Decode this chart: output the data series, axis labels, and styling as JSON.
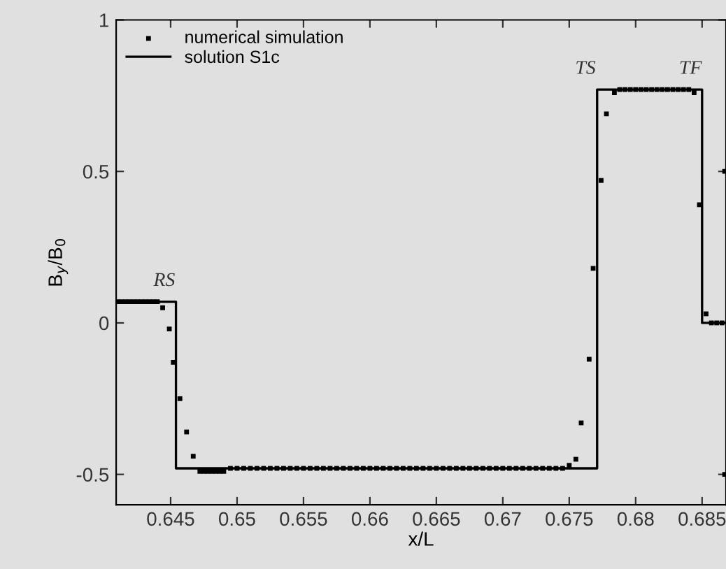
{
  "chart_data": {
    "type": "scatter",
    "xlabel": "x/L",
    "ylabel": "B$_{y}$/B$_{0}$",
    "xlim": [
      0.6409,
      0.6868
    ],
    "ylim": [
      -0.6,
      1
    ],
    "xticks": [
      0.645,
      0.65,
      0.655,
      0.66,
      0.665,
      0.67,
      0.675,
      0.68,
      0.685
    ],
    "yticks": [
      -0.5,
      0,
      0.5,
      1
    ],
    "grid": false,
    "legend": "top left",
    "series": [
      {
        "name": "numerical simulation",
        "marker": "square",
        "color": "#000000",
        "x": [
          0.641,
          0.6413,
          0.6416,
          0.6419,
          0.6422,
          0.6425,
          0.6428,
          0.6431,
          0.6434,
          0.6437,
          0.644,
          0.6444,
          0.6449,
          0.6452,
          0.6457,
          0.6462,
          0.6467,
          0.6472,
          0.6475,
          0.6478,
          0.6481,
          0.6484,
          0.6487,
          0.649,
          0.6495,
          0.65,
          0.6505,
          0.651,
          0.6515,
          0.652,
          0.6525,
          0.653,
          0.6535,
          0.654,
          0.6545,
          0.655,
          0.6555,
          0.656,
          0.6565,
          0.657,
          0.6575,
          0.658,
          0.6585,
          0.659,
          0.6595,
          0.66,
          0.6605,
          0.661,
          0.6615,
          0.662,
          0.6625,
          0.663,
          0.6635,
          0.664,
          0.6645,
          0.665,
          0.6655,
          0.666,
          0.6665,
          0.667,
          0.6675,
          0.668,
          0.6685,
          0.669,
          0.6695,
          0.67,
          0.6705,
          0.671,
          0.6715,
          0.672,
          0.6725,
          0.673,
          0.6735,
          0.674,
          0.6745,
          0.675,
          0.6755,
          0.6759,
          0.6765,
          0.6768,
          0.6774,
          0.6778,
          0.6784,
          0.6788,
          0.6792,
          0.6796,
          0.68,
          0.6804,
          0.6808,
          0.6812,
          0.6816,
          0.682,
          0.6824,
          0.6828,
          0.6832,
          0.6836,
          0.684,
          0.6844,
          0.6848,
          0.6853,
          0.6857,
          0.6861,
          0.6865,
          0.6867,
          0.6867
        ],
        "values": [
          0.07,
          0.07,
          0.07,
          0.07,
          0.07,
          0.07,
          0.07,
          0.07,
          0.07,
          0.07,
          0.07,
          0.05,
          -0.02,
          -0.13,
          -0.25,
          -0.36,
          -0.44,
          -0.49,
          -0.49,
          -0.49,
          -0.49,
          -0.49,
          -0.49,
          -0.49,
          -0.48,
          -0.48,
          -0.48,
          -0.48,
          -0.48,
          -0.48,
          -0.48,
          -0.48,
          -0.48,
          -0.48,
          -0.48,
          -0.48,
          -0.48,
          -0.48,
          -0.48,
          -0.48,
          -0.48,
          -0.48,
          -0.48,
          -0.48,
          -0.48,
          -0.48,
          -0.48,
          -0.48,
          -0.48,
          -0.48,
          -0.48,
          -0.48,
          -0.48,
          -0.48,
          -0.48,
          -0.48,
          -0.48,
          -0.48,
          -0.48,
          -0.48,
          -0.48,
          -0.48,
          -0.48,
          -0.48,
          -0.48,
          -0.48,
          -0.48,
          -0.48,
          -0.48,
          -0.48,
          -0.48,
          -0.48,
          -0.48,
          -0.48,
          -0.48,
          -0.47,
          -0.45,
          -0.33,
          -0.12,
          0.18,
          0.47,
          0.69,
          0.76,
          0.77,
          0.77,
          0.77,
          0.77,
          0.77,
          0.77,
          0.77,
          0.77,
          0.77,
          0.77,
          0.77,
          0.77,
          0.77,
          0.77,
          0.76,
          0.39,
          0.03,
          0.0,
          0.0,
          0.0,
          0.5,
          -0.5
        ]
      },
      {
        "name": "solution S1c",
        "type": "step",
        "marker": "none",
        "line_style": "solid",
        "color": "#000000",
        "x": [
          0.6409,
          0.6454,
          0.6454,
          0.6771,
          0.6771,
          0.685,
          0.685,
          0.6868
        ],
        "values": [
          0.07,
          0.07,
          -0.48,
          -0.48,
          0.77,
          0.77,
          0.0,
          0.0
        ]
      }
    ],
    "annotations": [
      {
        "text": "RS",
        "x": 0.6454,
        "y": 0.07
      },
      {
        "text": "TS",
        "x": 0.6771,
        "y": 0.77
      },
      {
        "text": "TF",
        "x": 0.685,
        "y": 0.77
      }
    ]
  }
}
